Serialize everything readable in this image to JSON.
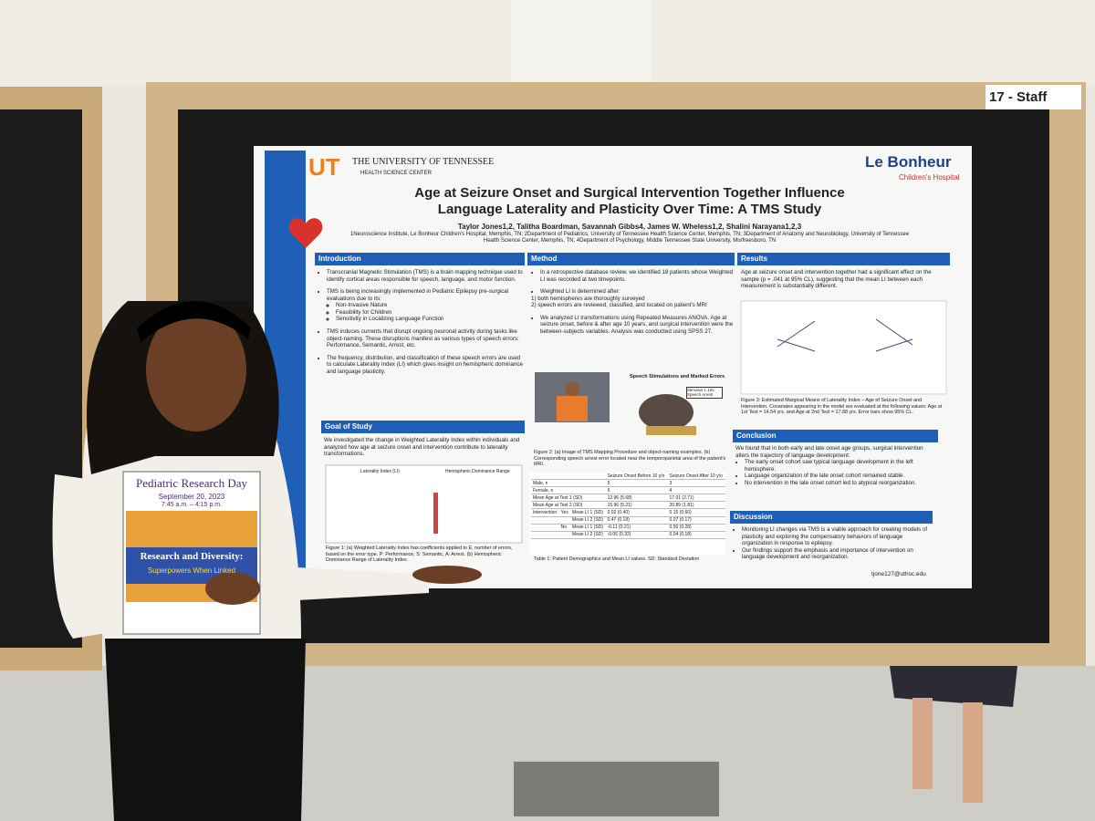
{
  "sign": "17 - Staff",
  "poster": {
    "header": {
      "ut_mark": "UT",
      "university": "THE UNIVERSITY OF TENNESSEE",
      "center": "HEALTH SCIENCE CENTER",
      "hospital": "Le Bonheur",
      "hospital_sub": "Children's Hospital"
    },
    "title": "Age at Seizure Onset and Surgical Intervention Together Influence Language Laterality and Plasticity Over Time: A TMS Study",
    "authors": "Taylor Jones1,2, Talitha Boardman, Savannah Gibbs4, James W. Wheless1,2, Shalini Narayana1,2,3",
    "affiliations": "1Neuroscience Institute, Le Bonheur Children's Hospital, Memphis, TN; 2Department of Pediatrics, University of Tennessee Health Science Center, Memphis, TN; 3Department of Anatomy and Neurobiology, University of Tennessee Health Science Center, Memphis, TN; 4Department of Psychology, Middle Tennessee State University, Murfreesboro, TN",
    "introduction": {
      "heading": "Introduction",
      "paragraphs": [
        "Transcranial Magnetic Stimulation (TMS) is a brain mapping technique used to identify cortical areas responsible for speech, language, and motor function.",
        "TMS is being increasingly implemented in Pediatric Epilepsy pre-surgical evaluations due to its:",
        "TMS induces currents that disrupt ongoing neuronal activity during tasks like object-naming. These disruptions manifest as various types of speech errors: Performance, Semantic, Arrest, etc.",
        "The frequency, distribution, and classification of these speech errors are used to calculate Laterality Index (LI) which gives insight on hemispheric dominance and language plasticity."
      ],
      "reasons": [
        "Non-Invasive Nature",
        "Feasibility for Children",
        "Sensitivity in Localizing Language Function"
      ]
    },
    "goal": {
      "heading": "Goal of Study",
      "text": "We investigated the change in Weighted Laterality Index within individuals and analyzed how age at seizure onset and intervention contribute to laterality transformations.",
      "figure_titles": [
        "Laterality Index (LI)",
        "Hemispheric Dominance Range"
      ],
      "caption": "Figure 1: (a) Weighted Laterality Index has coefficients applied to E, number of errors, based on the error type. P: Performance, S: Semantic, A: Arrest. (b) Hemispheric Dominance Range of Laterality Index."
    },
    "method": {
      "heading": "Method",
      "paragraphs": [
        "In a retrospective database review, we identified 18 patients whose Weighted LI was recorded at two timepoints.",
        "Weighted LI is determined after:",
        "We analyzed LI transformations using Repeated Measures ANOVA. Age at seizure onset, before & after age 10 years, and surgical intervention were the between-subjects variables. Analysis was conducted using SPSS 27."
      ],
      "steps": [
        "1) both hemispheres are thoroughly surveyed",
        "2) speech errors are reviewed, classified, and located on patient's MRI"
      ],
      "figure_title": "Speech Stimulations and Marked Errors",
      "figure_label": "Stimulus 1.10s: Speech Arrest",
      "caption": "Figure 2: (a) Image of TMS Mapping Procedure and object-naming examples. (b) Corresponding speech arrest error located near the temporoparietal area of the patient's MRI."
    },
    "table": {
      "columns": [
        "Seizure Onset Before 10 y/o",
        "Seizure Onset After 10 y/o"
      ],
      "group": "Intervention",
      "subgroups": [
        "Yes",
        "No"
      ],
      "rows": [
        [
          "Male, n",
          "5",
          "3"
        ],
        [
          "Female, n",
          "6",
          "4"
        ],
        [
          "Mean Age at Test 1 (SD)",
          "12.96 (5.68)",
          "17.01 (2.71)"
        ],
        [
          "Mean Age at Test 2 (SD)",
          "15.96 (5.21)",
          "20.89 (1.81)"
        ],
        [
          "Mean LI 1 (SD)",
          "0.02 (0.40)",
          "0.15 (0.60)"
        ],
        [
          "Mean LI 2 (SD)",
          "0.47 (0.18)",
          "0.07 (0.17)"
        ],
        [
          "Mean LI 1 (SD)",
          "-0.11 (0.21)",
          "0.50 (0.28)"
        ],
        [
          "Mean LI 2 (SD)",
          "-0.06 (0.32)",
          "0.04 (0.18)"
        ]
      ],
      "caption": "Table 1: Patient Demographics and Mean LI values. SD: Standard Deviation"
    },
    "results": {
      "heading": "Results",
      "text": "Age at seizure onset and intervention together had a significant effect on the sample (p = .041 at 95% CL), suggesting that the mean LI between each measurement is substantially different.",
      "caption": "Figure 3: Estimated Marginal Means of Laterality Index – Age of Seizure Onset and Intervention. Covariates appearing in the model are evaluated at the following values: Age at 1st Test = 14.54 yrs. and Age at 2nd Test = 17.88 yrs. Error bars show 95% CL."
    },
    "conclusion": {
      "heading": "Conclusion",
      "text": "We found that in both early and late onset age groups, surgical intervention alters the trajectory of language development:",
      "bullets": [
        "The early onset cohort saw typical language development in the left hemisphere.",
        "Language organization of the late onset cohort remained stable.",
        "No intervention in the late onset cohort led to atypical reorganization."
      ]
    },
    "discussion": {
      "heading": "Discussion",
      "bullets": [
        "Monitoring LI changes via TMS is a viable approach for creating models of plasticity and exploring the compensatory behaviors of language organization in response to epilepsy.",
        "Our findings support the emphasis and importance of intervention on language development and reorganization."
      ]
    },
    "email": "tjone127@uthsc.edu"
  },
  "booklet": {
    "title": "Pediatric Research Day",
    "date": "September 20, 2023",
    "time": "7:45 a.m. – 4:15 p.m.",
    "theme": "Research and Diversity:",
    "subtitle": "Superpowers When Linked"
  }
}
